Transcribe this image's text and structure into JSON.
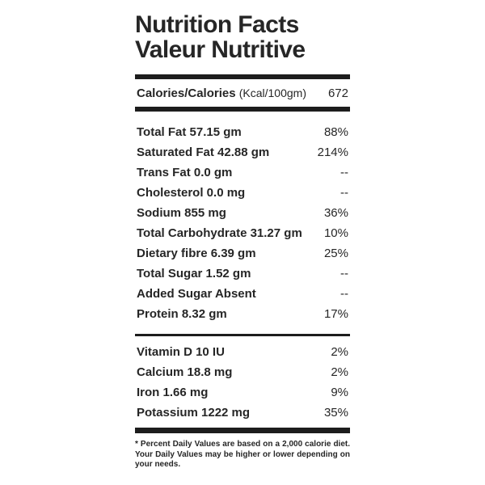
{
  "header": {
    "title_en": "Nutrition Facts",
    "title_fr": "Valeur Nutritive"
  },
  "calories": {
    "label": "Calories/Calories",
    "unit": "(Kcal/100gm)",
    "value": "672"
  },
  "nutrients": [
    {
      "label": "Total Fat 57.15 gm",
      "dv": "88%"
    },
    {
      "label": "Saturated Fat 42.88 gm",
      "dv": "214%"
    },
    {
      "label": "Trans Fat 0.0 gm",
      "dv": "--"
    },
    {
      "label": "Cholesterol 0.0 mg",
      "dv": "--"
    },
    {
      "label": "Sodium 855 mg",
      "dv": "36%"
    },
    {
      "label": "Total Carbohydrate 31.27 gm",
      "dv": "10%"
    },
    {
      "label": "Dietary fibre 6.39 gm",
      "dv": "25%"
    },
    {
      "label": "Total Sugar 1.52 gm",
      "dv": "--"
    },
    {
      "label": "Added Sugar Absent",
      "dv": "--"
    },
    {
      "label": "Protein 8.32 gm",
      "dv": "17%"
    }
  ],
  "micronutrients": [
    {
      "label": "Vitamin D 10 IU",
      "dv": "2%"
    },
    {
      "label": "Calcium 18.8 mg",
      "dv": "2%"
    },
    {
      "label": "Iron 1.66 mg",
      "dv": "9%"
    },
    {
      "label": "Potassium 1222 mg",
      "dv": "35%"
    }
  ],
  "footnote": "* Percent Daily Values are based on a 2,000 calorie diet. Your Daily Values may be higher or lower depending on your needs.",
  "colors": {
    "text": "#262626",
    "divider": "#1d1d1d",
    "background": "#ffffff"
  }
}
